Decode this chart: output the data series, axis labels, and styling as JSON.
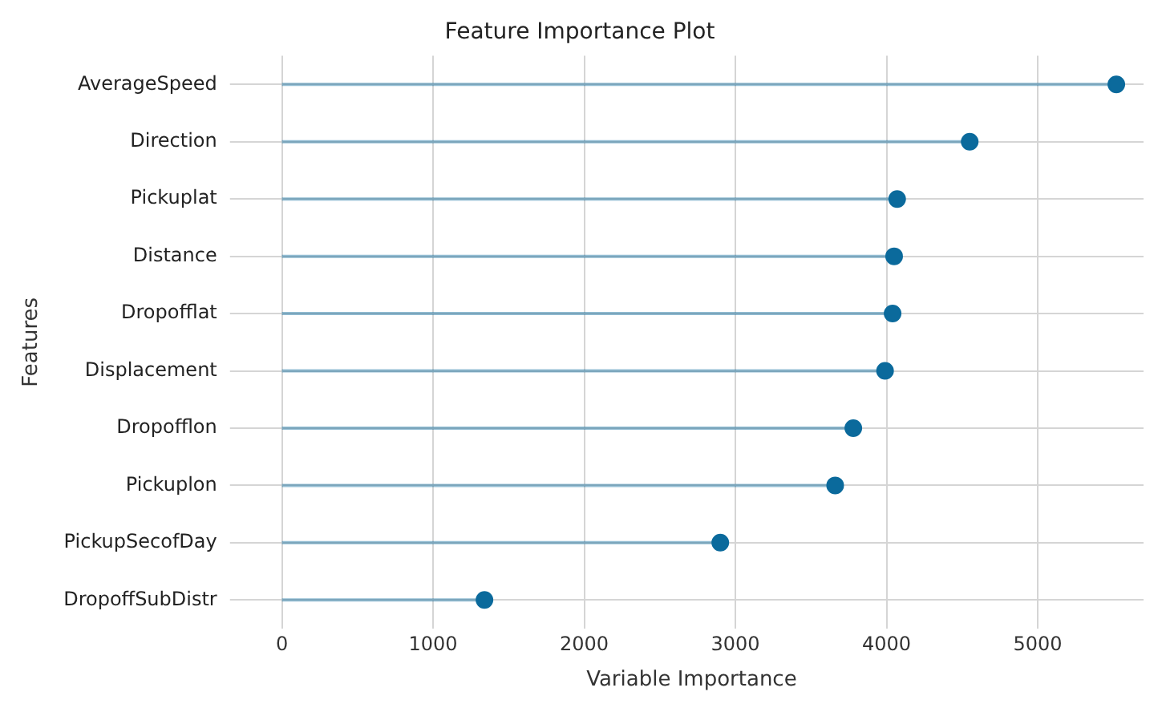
{
  "chart_data": {
    "type": "lollipop",
    "orientation": "horizontal",
    "title": "Feature Importance Plot",
    "xlabel": "Variable Importance",
    "ylabel": "Features",
    "categories": [
      "AverageSpeed",
      "Direction",
      "Pickuplat",
      "Distance",
      "Dropofflat",
      "Displacement",
      "Dropofflon",
      "Pickuplon",
      "PickupSecofDay",
      "DropoffSubDistr"
    ],
    "series": [
      {
        "color": "#0b6a9c",
        "values": [
          5520,
          4550,
          4070,
          4050,
          4040,
          3990,
          3780,
          3660,
          2900,
          1340
        ]
      }
    ],
    "xlim": [
      -280,
      5700
    ],
    "xticks": [
      0,
      1000,
      2000,
      3000,
      4000,
      5000
    ],
    "grid": true,
    "legend": false,
    "marker": "circle"
  }
}
